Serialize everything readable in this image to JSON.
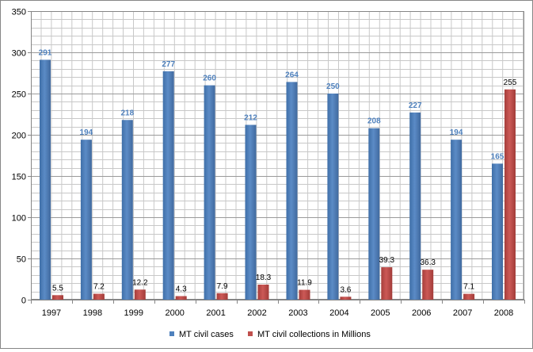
{
  "chart_data": {
    "type": "bar",
    "title": "",
    "xlabel": "",
    "ylabel": "",
    "categories": [
      "1997",
      "1998",
      "1999",
      "2000",
      "2001",
      "2002",
      "2003",
      "2004",
      "2005",
      "2006",
      "2007",
      "2008"
    ],
    "series": [
      {
        "name": "MT civil cases",
        "color": "#4F81BD",
        "label_color": "#4F81BD",
        "values": [
          291,
          194,
          218,
          277,
          260,
          212,
          264,
          250,
          208,
          227,
          194,
          165
        ],
        "labels": [
          "291",
          "194",
          "218",
          "277",
          "260",
          "212",
          "264",
          "250",
          "208",
          "227",
          "194",
          "165"
        ]
      },
      {
        "name": "MT civil collections in Millions",
        "color": "#C0504D",
        "label_color": "#000000",
        "values": [
          5.5,
          7.2,
          12.2,
          4.3,
          7.9,
          18.3,
          11.9,
          3.6,
          39.3,
          36.3,
          7.1,
          255
        ],
        "labels": [
          "5.5",
          "7.2",
          "12.2",
          "4.3",
          "7.9",
          "18.3",
          "11.9",
          "3.6",
          "39.3",
          "36.3",
          "7.1",
          "255"
        ]
      }
    ],
    "ylim": [
      0,
      350
    ],
    "yticks": [
      0,
      50,
      100,
      150,
      200,
      250,
      300,
      350
    ],
    "grid": "both",
    "legend": "bottom"
  }
}
